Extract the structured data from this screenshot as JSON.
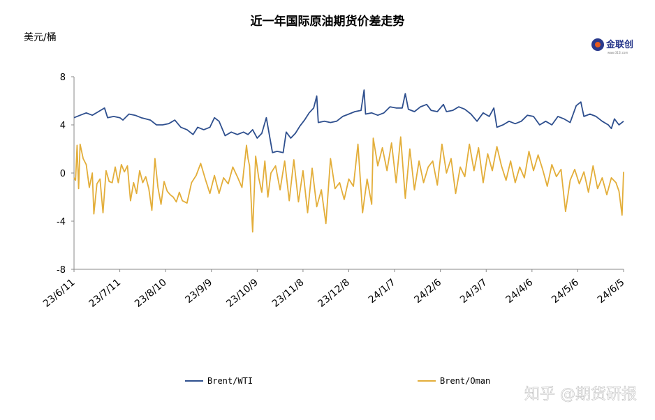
{
  "chart_data": {
    "type": "line",
    "title": "近一年国际原油期货价差走势",
    "ylabel": "美元/桶",
    "ylim": [
      -8,
      8
    ],
    "yticks": [
      8,
      4,
      0,
      -4,
      -8
    ],
    "xticks": [
      "23/6/11",
      "23/7/11",
      "23/8/10",
      "23/9/9",
      "23/10/9",
      "23/11/8",
      "23/12/8",
      "24/1/7",
      "24/2/6",
      "24/3/7",
      "24/4/6",
      "24/5/6",
      "24/6/5"
    ],
    "x_start": "2023-06-11",
    "x_end": "2024-06-05",
    "grid": false,
    "legend_position": "bottom",
    "series": [
      {
        "name": "Brent/WTI",
        "color": "#2E4F8E",
        "points": [
          [
            "2023-06-11",
            4.6
          ],
          [
            "2023-06-15",
            4.8
          ],
          [
            "2023-06-19",
            5.0
          ],
          [
            "2023-06-23",
            4.8
          ],
          [
            "2023-06-27",
            5.1
          ],
          [
            "2023-07-01",
            5.4
          ],
          [
            "2023-07-03",
            4.6
          ],
          [
            "2023-07-07",
            4.7
          ],
          [
            "2023-07-11",
            4.6
          ],
          [
            "2023-07-13",
            4.4
          ],
          [
            "2023-07-17",
            4.9
          ],
          [
            "2023-07-21",
            4.8
          ],
          [
            "2023-07-25",
            4.6
          ],
          [
            "2023-07-28",
            4.5
          ],
          [
            "2023-07-31",
            4.4
          ],
          [
            "2023-08-04",
            4.0
          ],
          [
            "2023-08-08",
            4.0
          ],
          [
            "2023-08-12",
            4.1
          ],
          [
            "2023-08-16",
            4.4
          ],
          [
            "2023-08-20",
            3.8
          ],
          [
            "2023-08-24",
            3.6
          ],
          [
            "2023-08-28",
            3.2
          ],
          [
            "2023-08-31",
            3.8
          ],
          [
            "2023-09-04",
            3.6
          ],
          [
            "2023-09-08",
            3.8
          ],
          [
            "2023-09-11",
            4.6
          ],
          [
            "2023-09-14",
            4.3
          ],
          [
            "2023-09-18",
            3.1
          ],
          [
            "2023-09-22",
            3.4
          ],
          [
            "2023-09-26",
            3.2
          ],
          [
            "2023-09-30",
            3.4
          ],
          [
            "2023-10-03",
            3.2
          ],
          [
            "2023-10-06",
            3.6
          ],
          [
            "2023-10-09",
            2.9
          ],
          [
            "2023-10-12",
            3.3
          ],
          [
            "2023-10-15",
            4.6
          ],
          [
            "2023-10-19",
            1.7
          ],
          [
            "2023-10-22",
            1.8
          ],
          [
            "2023-10-26",
            1.7
          ],
          [
            "2023-10-28",
            3.4
          ],
          [
            "2023-10-31",
            2.9
          ],
          [
            "2023-11-03",
            3.3
          ],
          [
            "2023-11-06",
            3.9
          ],
          [
            "2023-11-09",
            4.4
          ],
          [
            "2023-11-12",
            5.0
          ],
          [
            "2023-11-15",
            5.4
          ],
          [
            "2023-11-17",
            6.4
          ],
          [
            "2023-11-18",
            4.2
          ],
          [
            "2023-11-22",
            4.3
          ],
          [
            "2023-11-26",
            4.2
          ],
          [
            "2023-11-30",
            4.3
          ],
          [
            "2023-12-04",
            4.7
          ],
          [
            "2023-12-08",
            4.9
          ],
          [
            "2023-12-12",
            5.1
          ],
          [
            "2023-12-16",
            5.2
          ],
          [
            "2023-12-18",
            6.9
          ],
          [
            "2023-12-19",
            4.9
          ],
          [
            "2023-12-23",
            5.0
          ],
          [
            "2023-12-27",
            4.8
          ],
          [
            "2023-12-31",
            5.0
          ],
          [
            "2024-01-04",
            5.5
          ],
          [
            "2024-01-08",
            5.4
          ],
          [
            "2024-01-12",
            5.4
          ],
          [
            "2024-01-14",
            6.6
          ],
          [
            "2024-01-16",
            5.3
          ],
          [
            "2024-01-20",
            5.1
          ],
          [
            "2024-01-24",
            5.5
          ],
          [
            "2024-01-28",
            5.7
          ],
          [
            "2024-01-31",
            5.2
          ],
          [
            "2024-02-04",
            5.1
          ],
          [
            "2024-02-08",
            5.7
          ],
          [
            "2024-02-10",
            5.1
          ],
          [
            "2024-02-14",
            5.2
          ],
          [
            "2024-02-18",
            5.5
          ],
          [
            "2024-02-22",
            5.3
          ],
          [
            "2024-02-26",
            4.9
          ],
          [
            "2024-03-01",
            4.3
          ],
          [
            "2024-03-05",
            5.0
          ],
          [
            "2024-03-09",
            4.7
          ],
          [
            "2024-03-12",
            5.4
          ],
          [
            "2024-03-14",
            3.8
          ],
          [
            "2024-03-18",
            4.0
          ],
          [
            "2024-03-22",
            4.3
          ],
          [
            "2024-03-26",
            4.1
          ],
          [
            "2024-03-30",
            4.3
          ],
          [
            "2024-04-03",
            4.8
          ],
          [
            "2024-04-07",
            4.7
          ],
          [
            "2024-04-11",
            4.0
          ],
          [
            "2024-04-15",
            4.3
          ],
          [
            "2024-04-19",
            4.0
          ],
          [
            "2024-04-23",
            4.7
          ],
          [
            "2024-04-27",
            4.5
          ],
          [
            "2024-05-01",
            4.2
          ],
          [
            "2024-05-05",
            5.6
          ],
          [
            "2024-05-08",
            5.9
          ],
          [
            "2024-05-10",
            4.7
          ],
          [
            "2024-05-14",
            4.9
          ],
          [
            "2024-05-18",
            4.7
          ],
          [
            "2024-05-22",
            4.3
          ],
          [
            "2024-05-26",
            4.0
          ],
          [
            "2024-05-28",
            3.7
          ],
          [
            "2024-05-30",
            4.5
          ],
          [
            "2024-06-02",
            4.0
          ],
          [
            "2024-06-05",
            4.3
          ]
        ]
      },
      {
        "name": "Brent/Oman",
        "color": "#E3AE3A",
        "points": [
          [
            "2023-06-11",
            -0.4
          ],
          [
            "2023-06-12",
            -0.6
          ],
          [
            "2023-06-13",
            2.3
          ],
          [
            "2023-06-14",
            -1.3
          ],
          [
            "2023-06-15",
            2.4
          ],
          [
            "2023-06-17",
            1.2
          ],
          [
            "2023-06-19",
            0.7
          ],
          [
            "2023-06-21",
            -1.2
          ],
          [
            "2023-06-23",
            0.0
          ],
          [
            "2023-06-24",
            -3.4
          ],
          [
            "2023-06-26",
            -0.9
          ],
          [
            "2023-06-28",
            -0.5
          ],
          [
            "2023-06-30",
            -3.3
          ],
          [
            "2023-07-02",
            0.2
          ],
          [
            "2023-07-04",
            -0.7
          ],
          [
            "2023-07-06",
            -0.8
          ],
          [
            "2023-07-08",
            0.5
          ],
          [
            "2023-07-10",
            -0.8
          ],
          [
            "2023-07-12",
            0.7
          ],
          [
            "2023-07-14",
            0.1
          ],
          [
            "2023-07-16",
            0.6
          ],
          [
            "2023-07-18",
            -2.3
          ],
          [
            "2023-07-20",
            -0.8
          ],
          [
            "2023-07-22",
            -1.7
          ],
          [
            "2023-07-24",
            0.2
          ],
          [
            "2023-07-26",
            -0.8
          ],
          [
            "2023-07-28",
            -0.3
          ],
          [
            "2023-07-30",
            -1.3
          ],
          [
            "2023-08-01",
            -3.1
          ],
          [
            "2023-08-03",
            1.2
          ],
          [
            "2023-08-05",
            -1.2
          ],
          [
            "2023-08-07",
            -2.6
          ],
          [
            "2023-08-09",
            -0.7
          ],
          [
            "2023-08-11",
            -1.5
          ],
          [
            "2023-08-13",
            -1.8
          ],
          [
            "2023-08-15",
            -2.0
          ],
          [
            "2023-08-17",
            -2.4
          ],
          [
            "2023-08-19",
            -1.6
          ],
          [
            "2023-08-21",
            -2.3
          ],
          [
            "2023-08-24",
            -2.5
          ],
          [
            "2023-08-27",
            -0.8
          ],
          [
            "2023-08-30",
            -0.2
          ],
          [
            "2023-09-02",
            0.8
          ],
          [
            "2023-09-05",
            -0.5
          ],
          [
            "2023-09-08",
            -1.7
          ],
          [
            "2023-09-11",
            -0.2
          ],
          [
            "2023-09-14",
            -1.7
          ],
          [
            "2023-09-17",
            -0.4
          ],
          [
            "2023-09-20",
            -0.9
          ],
          [
            "2023-09-23",
            0.5
          ],
          [
            "2023-09-26",
            -0.3
          ],
          [
            "2023-09-29",
            -1.2
          ],
          [
            "2023-10-02",
            2.3
          ],
          [
            "2023-10-03",
            1.2
          ],
          [
            "2023-10-04",
            0.6
          ],
          [
            "2023-10-05",
            -2.2
          ],
          [
            "2023-10-06",
            -4.9
          ],
          [
            "2023-10-08",
            1.4
          ],
          [
            "2023-10-10",
            -0.4
          ],
          [
            "2023-10-12",
            -1.6
          ],
          [
            "2023-10-14",
            1.0
          ],
          [
            "2023-10-16",
            -2.0
          ],
          [
            "2023-10-18",
            0.0
          ],
          [
            "2023-10-21",
            0.6
          ],
          [
            "2023-10-24",
            -1.4
          ],
          [
            "2023-10-27",
            1.0
          ],
          [
            "2023-10-30",
            -2.3
          ],
          [
            "2023-11-02",
            1.1
          ],
          [
            "2023-11-05",
            -2.4
          ],
          [
            "2023-11-08",
            0.2
          ],
          [
            "2023-11-11",
            -3.3
          ],
          [
            "2023-11-14",
            0.4
          ],
          [
            "2023-11-17",
            -2.8
          ],
          [
            "2023-11-20",
            -1.4
          ],
          [
            "2023-11-23",
            -4.2
          ],
          [
            "2023-11-26",
            1.2
          ],
          [
            "2023-11-29",
            -1.3
          ],
          [
            "2023-12-02",
            -0.8
          ],
          [
            "2023-12-05",
            -2.2
          ],
          [
            "2023-12-08",
            -0.5
          ],
          [
            "2023-12-11",
            -1.1
          ],
          [
            "2023-12-14",
            2.4
          ],
          [
            "2023-12-17",
            -3.3
          ],
          [
            "2023-12-20",
            -0.5
          ],
          [
            "2023-12-23",
            -2.6
          ],
          [
            "2023-12-24",
            2.9
          ],
          [
            "2023-12-27",
            0.6
          ],
          [
            "2023-12-30",
            2.1
          ],
          [
            "2024-01-02",
            0.2
          ],
          [
            "2024-01-05",
            2.5
          ],
          [
            "2024-01-08",
            -0.8
          ],
          [
            "2024-01-11",
            3.0
          ],
          [
            "2024-01-14",
            -2.1
          ],
          [
            "2024-01-17",
            2.0
          ],
          [
            "2024-01-20",
            -1.4
          ],
          [
            "2024-01-23",
            1.0
          ],
          [
            "2024-01-26",
            -0.8
          ],
          [
            "2024-01-29",
            0.5
          ],
          [
            "2024-02-01",
            1.0
          ],
          [
            "2024-02-04",
            -1.0
          ],
          [
            "2024-02-07",
            2.4
          ],
          [
            "2024-02-10",
            0.0
          ],
          [
            "2024-02-13",
            1.2
          ],
          [
            "2024-02-16",
            -1.7
          ],
          [
            "2024-02-19",
            0.5
          ],
          [
            "2024-02-22",
            -0.3
          ],
          [
            "2024-02-25",
            2.4
          ],
          [
            "2024-02-28",
            0.2
          ],
          [
            "2024-03-02",
            2.1
          ],
          [
            "2024-03-05",
            -0.8
          ],
          [
            "2024-03-08",
            1.6
          ],
          [
            "2024-03-11",
            0.2
          ],
          [
            "2024-03-14",
            2.2
          ],
          [
            "2024-03-17",
            0.6
          ],
          [
            "2024-03-20",
            -0.6
          ],
          [
            "2024-03-23",
            1.0
          ],
          [
            "2024-03-26",
            -0.8
          ],
          [
            "2024-03-29",
            0.5
          ],
          [
            "2024-04-01",
            -0.4
          ],
          [
            "2024-04-04",
            1.8
          ],
          [
            "2024-04-07",
            0.2
          ],
          [
            "2024-04-10",
            1.5
          ],
          [
            "2024-04-13",
            0.3
          ],
          [
            "2024-04-16",
            -1.1
          ],
          [
            "2024-04-19",
            0.7
          ],
          [
            "2024-04-22",
            -0.3
          ],
          [
            "2024-04-25",
            0.3
          ],
          [
            "2024-04-28",
            -3.2
          ],
          [
            "2024-05-01",
            -0.6
          ],
          [
            "2024-05-04",
            0.3
          ],
          [
            "2024-05-07",
            -0.9
          ],
          [
            "2024-05-10",
            0.1
          ],
          [
            "2024-05-13",
            -1.6
          ],
          [
            "2024-05-16",
            0.6
          ],
          [
            "2024-05-19",
            -1.3
          ],
          [
            "2024-05-22",
            -0.4
          ],
          [
            "2024-05-25",
            -1.8
          ],
          [
            "2024-05-28",
            -0.4
          ],
          [
            "2024-05-31",
            -0.8
          ],
          [
            "2024-06-02",
            -1.5
          ],
          [
            "2024-06-04",
            -3.5
          ],
          [
            "2024-06-05",
            0.1
          ]
        ]
      }
    ]
  },
  "branding": {
    "logo_text": "金联创",
    "logo_sub": "www.315i.com",
    "watermark": "知乎 @期货研报"
  }
}
